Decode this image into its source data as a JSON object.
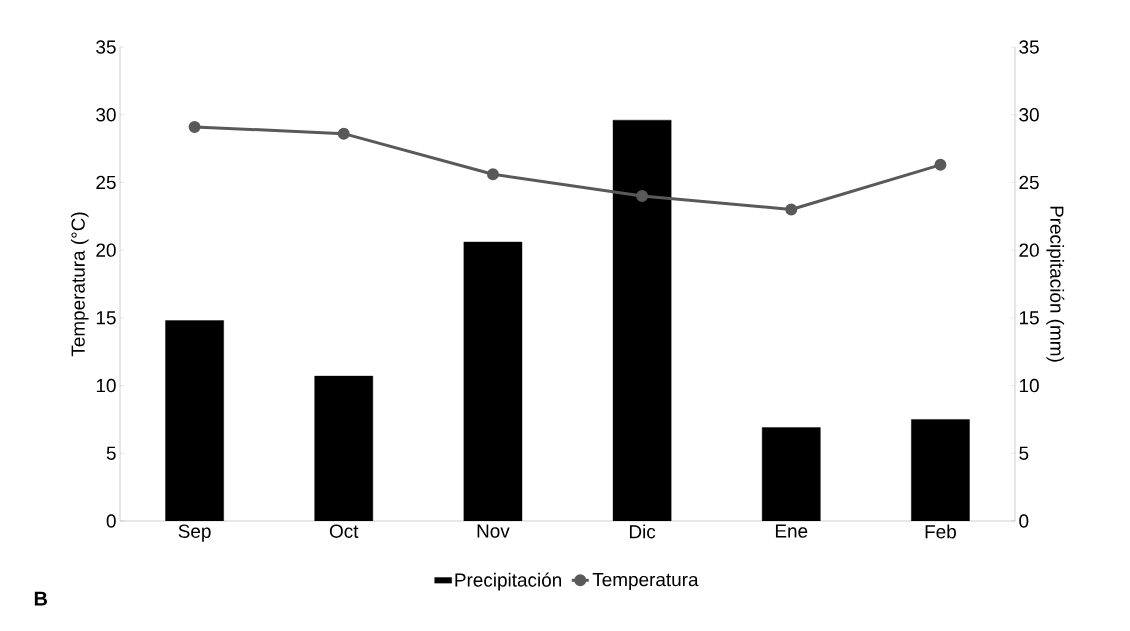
{
  "chart_data": {
    "type": "bar",
    "categories": [
      "Sep",
      "Oct",
      "Nov",
      "Dic",
      "Ene",
      "Feb"
    ],
    "series": [
      {
        "name": "Precipitación",
        "axis": "y2",
        "color": "#000000",
        "values": [
          14.8,
          10.7,
          20.6,
          29.6,
          6.9,
          7.5
        ]
      },
      {
        "name": "Temperatura",
        "type": "line",
        "color": "#595959",
        "values": [
          29.1,
          28.6,
          25.6,
          24.0,
          23.0,
          26.3
        ]
      }
    ],
    "ylabel": "Temperatura (°C)",
    "y2label": "Precipitación (mm)",
    "ylim": [
      0,
      35
    ],
    "yticks": [
      0,
      5,
      10,
      15,
      20,
      25,
      30,
      35
    ],
    "y2lim": [
      0,
      35
    ],
    "y2ticks": [
      0,
      5,
      10,
      15,
      20,
      25,
      30,
      35
    ],
    "marker": "circle",
    "legend": "bottom",
    "annotations": [
      "**B**"
    ]
  }
}
